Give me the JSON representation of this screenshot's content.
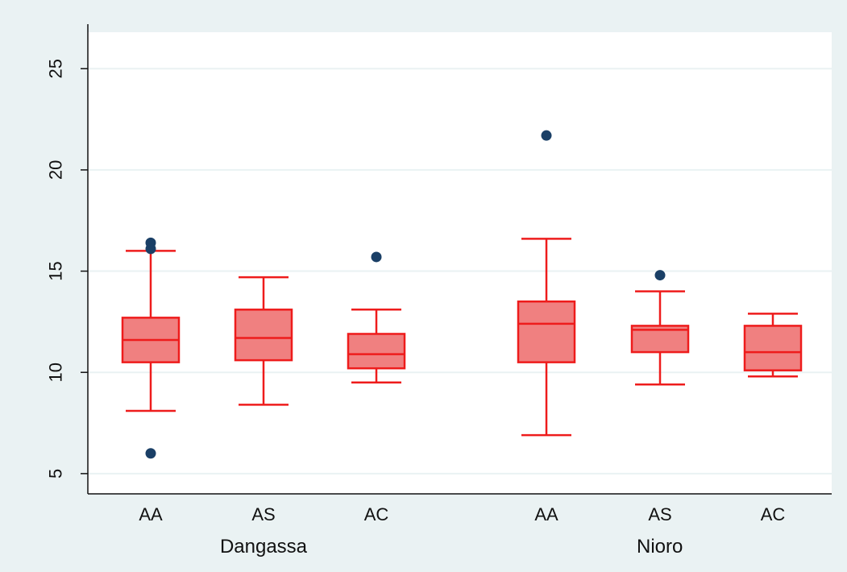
{
  "chart_data": {
    "type": "box",
    "title": "",
    "xlabel": "",
    "ylabel": "",
    "ylim": [
      4,
      26.8
    ],
    "yticks": [
      5,
      10,
      15,
      20,
      25
    ],
    "grid": true,
    "colors": {
      "box_fill": "#f08080",
      "box_stroke": "#ee1c1c",
      "outlier": "#1a3f66",
      "grid": "#eaf2f3",
      "axis": "#111111",
      "plot_bg": "#ffffff",
      "page_bg": "#eaf2f3"
    },
    "groups": [
      {
        "name": "Dangassa",
        "boxes": [
          {
            "category": "AA",
            "whisker_low": 8.1,
            "q1": 10.5,
            "median": 11.6,
            "q3": 12.7,
            "whisker_high": 16.0,
            "outliers": [
              16.4,
              16.1,
              6.0
            ]
          },
          {
            "category": "AS",
            "whisker_low": 8.4,
            "q1": 10.6,
            "median": 11.7,
            "q3": 13.1,
            "whisker_high": 14.7,
            "outliers": []
          },
          {
            "category": "AC",
            "whisker_low": 9.5,
            "q1": 10.2,
            "median": 10.9,
            "q3": 11.9,
            "whisker_high": 13.1,
            "outliers": [
              15.7
            ]
          }
        ]
      },
      {
        "name": "Nioro",
        "boxes": [
          {
            "category": "AA",
            "whisker_low": 6.9,
            "q1": 10.5,
            "median": 12.4,
            "q3": 13.5,
            "whisker_high": 16.6,
            "outliers": [
              21.7
            ]
          },
          {
            "category": "AS",
            "whisker_low": 9.4,
            "q1": 11.0,
            "median": 12.1,
            "q3": 12.3,
            "whisker_high": 14.0,
            "outliers": [
              14.8
            ]
          },
          {
            "category": "AC",
            "whisker_low": 9.8,
            "q1": 10.1,
            "median": 11.0,
            "q3": 12.3,
            "whisker_high": 12.9,
            "outliers": []
          }
        ]
      }
    ]
  }
}
